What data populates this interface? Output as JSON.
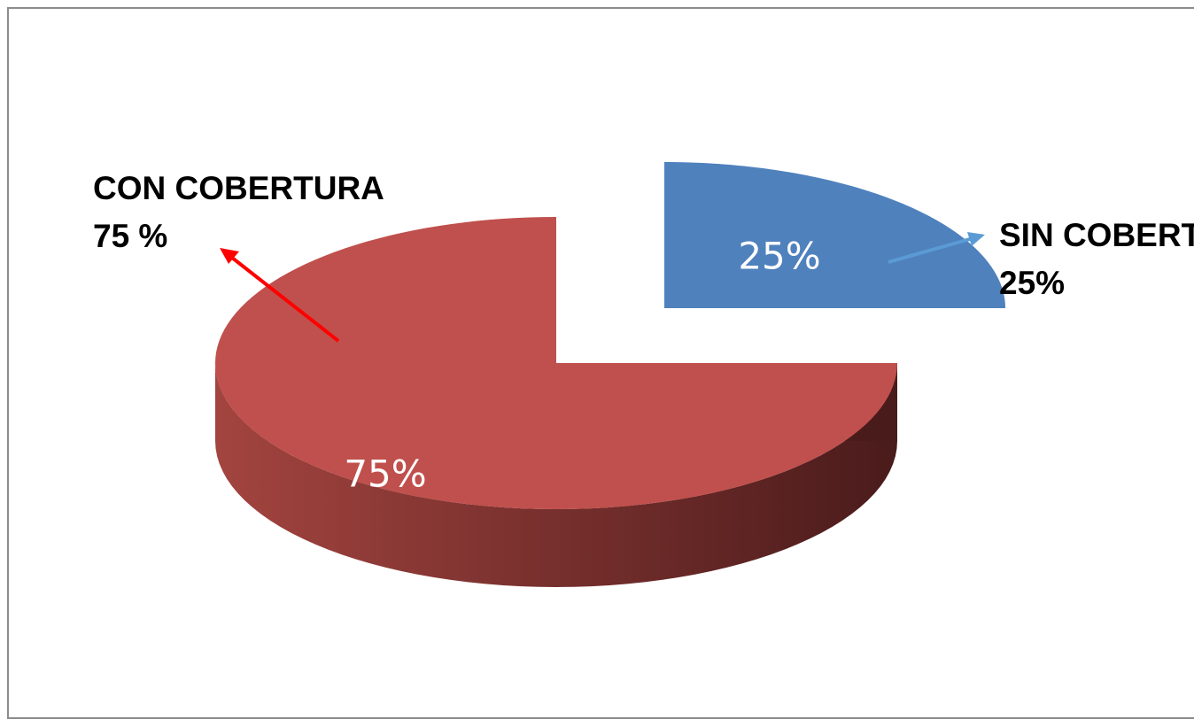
{
  "chart_data": {
    "type": "pie",
    "categories": [
      "CON COBERTURA",
      "SIN COBERTURA"
    ],
    "values": [
      75,
      25
    ],
    "value_labels": [
      "75%",
      "25%"
    ],
    "outside_labels": [
      "75 %",
      "25%"
    ],
    "colors": [
      "#c0504d",
      "#4f81bd"
    ],
    "side_colors": [
      [
        "#a3443f",
        "#4a1b1b"
      ],
      [
        "#1f3350",
        "#1f3350"
      ]
    ]
  }
}
